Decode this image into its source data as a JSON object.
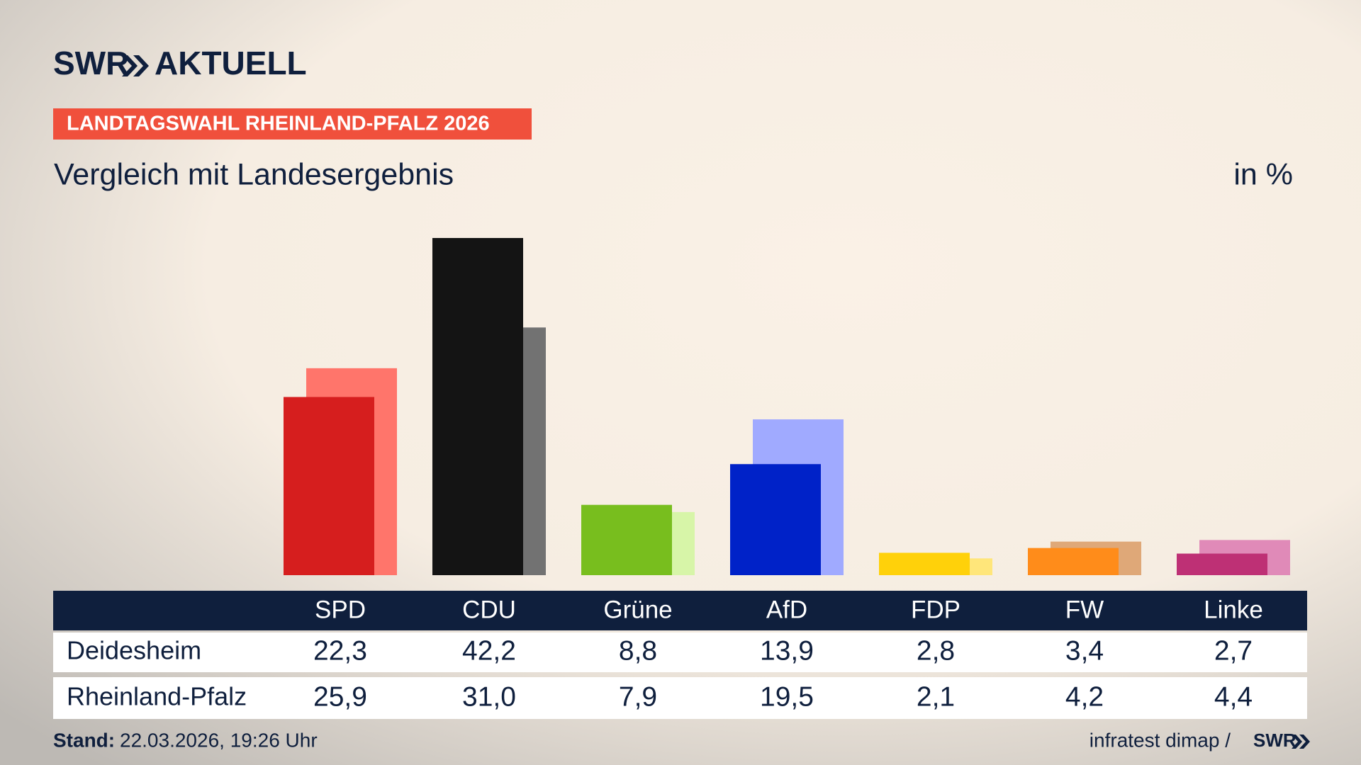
{
  "header": {
    "brand": "SWR",
    "brand_suffix": "AKTUELL",
    "kicker": "LANDTAGSWAHL RHEINLAND-PFALZ 2026"
  },
  "chart_data": {
    "type": "bar",
    "title": "Vergleich mit Landesergebnis",
    "unit": "in %",
    "categories": [
      "SPD",
      "CDU",
      "Grüne",
      "AfD",
      "FDP",
      "FW",
      "Linke"
    ],
    "series": [
      {
        "name": "Deidesheim",
        "colors": [
          "#d61e1e",
          "#141414",
          "#78be1e",
          "#0022c8",
          "#ffd10a",
          "#ff8c1a",
          "#be3075"
        ],
        "values": [
          22.3,
          42.2,
          8.8,
          13.9,
          2.8,
          3.4,
          2.7
        ],
        "value_labels": [
          "22,3",
          "42,2",
          "8,8",
          "13,9",
          "2,8",
          "3,4",
          "2,7"
        ]
      },
      {
        "name": "Rheinland-Pfalz",
        "colors": [
          "#ff756b",
          "#727272",
          "#d7f5a8",
          "#a0aaff",
          "#ffe67a",
          "#dfa878",
          "#e08ab8"
        ],
        "values": [
          25.9,
          31.0,
          7.9,
          19.5,
          2.1,
          4.2,
          4.4
        ],
        "value_labels": [
          "25,9",
          "31,0",
          "7,9",
          "19,5",
          "2,1",
          "4,2",
          "4,4"
        ]
      }
    ]
  },
  "footer": {
    "stand_label": "Stand:",
    "stand": "22.03.2026, 19:26 Uhr",
    "source": "infratest dimap /",
    "source_logo": "SWR"
  }
}
